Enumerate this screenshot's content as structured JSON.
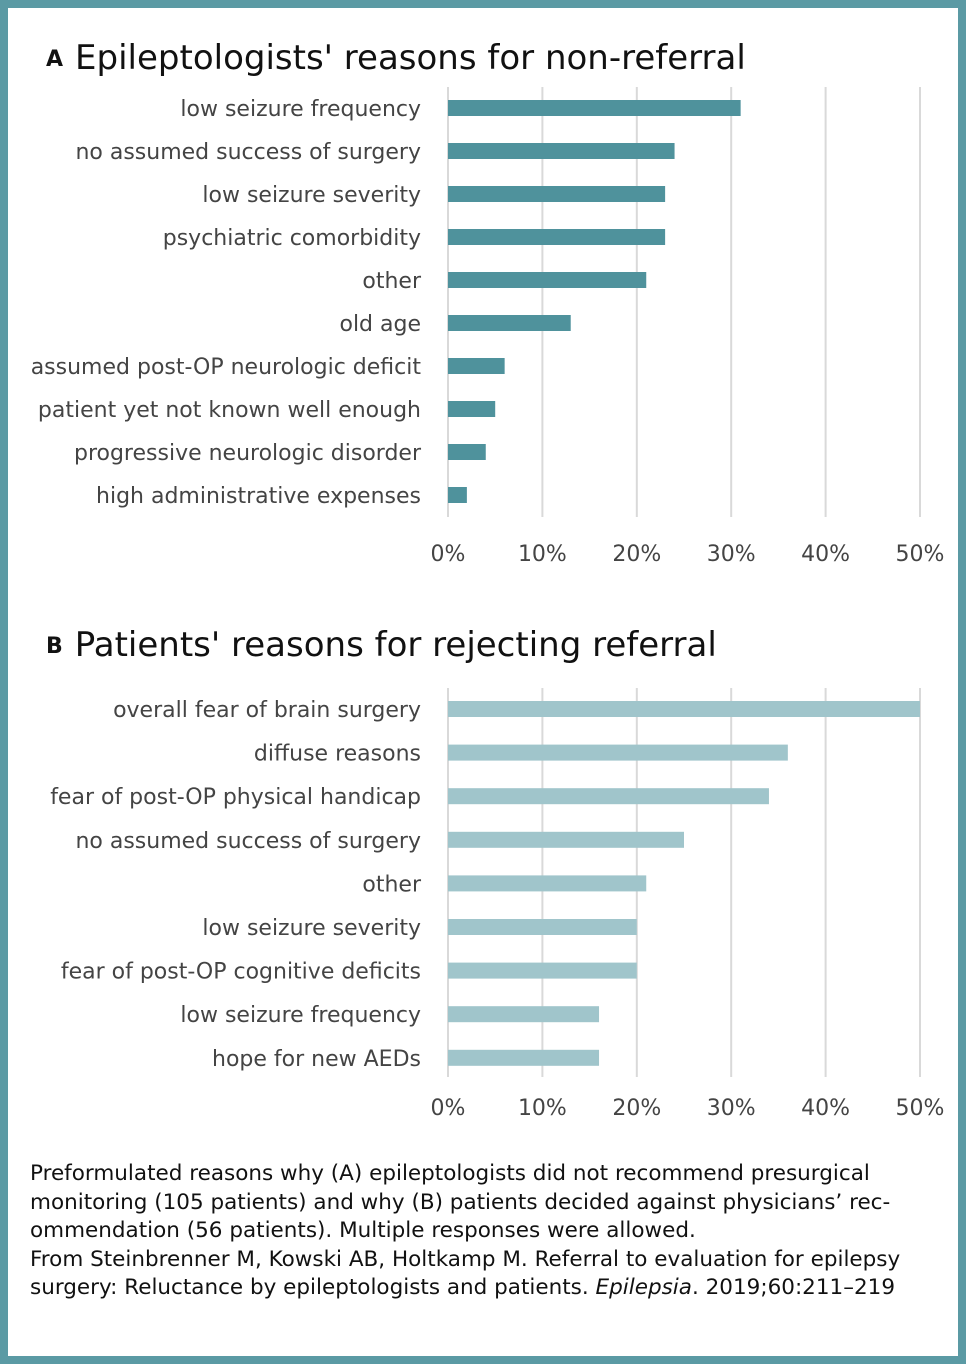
{
  "chart_data": [
    {
      "type": "bar",
      "orientation": "horizontal",
      "panel": "A",
      "title": "Epileptologists' reasons for non-referral",
      "categories": [
        "low seizure frequency",
        "no assumed success of surgery",
        "low seizure severity",
        "psychiatric comorbidity",
        "other",
        "old age",
        "assumed post-OP neurologic deficit",
        "patient yet not known well enough",
        "progressive neurologic disorder",
        "high administrative expenses"
      ],
      "values": [
        31,
        24,
        23,
        23,
        21,
        13,
        6,
        5,
        4,
        2
      ],
      "xlim": [
        0,
        50
      ],
      "xticks": [
        "0%",
        "10%",
        "20%",
        "30%",
        "40%",
        "50%"
      ],
      "grid": true,
      "color": "#4f929c"
    },
    {
      "type": "bar",
      "orientation": "horizontal",
      "panel": "B",
      "title": "Patients' reasons for rejecting referral",
      "categories": [
        "overall fear of brain surgery",
        "diffuse reasons",
        "fear of post-OP physical handicap",
        "no assumed success of surgery",
        "other",
        "low seizure severity",
        "fear of post-OP cognitive deficits",
        "low seizure frequency",
        "hope for new AEDs"
      ],
      "values": [
        50,
        36,
        34,
        25,
        21,
        20,
        20,
        16,
        16
      ],
      "xlim": [
        0,
        50
      ],
      "xticks": [
        "0%",
        "10%",
        "20%",
        "30%",
        "40%",
        "50%"
      ],
      "grid": true,
      "color": "#a0c5cb"
    }
  ],
  "caption": {
    "line1": "Preformulated reasons why (A) epileptologists did not recommend presurgical monitoring (105 patients) and why (B) patients decided against physicians’ rec-ommendation (56 patients). Multiple responses were allowed.",
    "source_prefix": "From Steinbrenner M, Kowski AB, Holtkamp M. Referral to evaluation for epilepsy surgery: Reluctance by epileptologists and patients. ",
    "journal": "Epilepsia",
    "source_suffix": ". 2019;60:211–219"
  }
}
